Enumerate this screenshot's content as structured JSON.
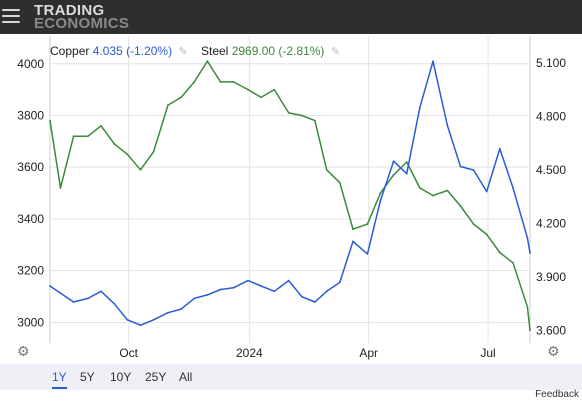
{
  "header": {
    "logo_line1": "TRADING",
    "logo_line2": "ECONOMICS"
  },
  "legend": {
    "copper": {
      "name": "Copper",
      "value": "4.035 (-1.20%)",
      "color": "#2a5bd7"
    },
    "steel": {
      "name": "Steel",
      "value": "2969.00 (-2.81%)",
      "color": "#3b8a3b"
    }
  },
  "range_buttons": [
    {
      "label": "1Y",
      "active": true
    },
    {
      "label": "5Y",
      "active": false
    },
    {
      "label": "10Y",
      "active": false
    },
    {
      "label": "25Y",
      "active": false
    },
    {
      "label": "All",
      "active": false
    }
  ],
  "feedback_label": "Feedback",
  "icons": {
    "menu": "hamburger-menu-icon",
    "edit": "pencil-icon",
    "settings": "gear-icon"
  },
  "chart_data": {
    "type": "line",
    "x_tick_labels": [
      "Oct",
      "2024",
      "Apr",
      "Jul"
    ],
    "x_tick_dates": [
      "2023-10-01",
      "2024-01-01",
      "2024-04-01",
      "2024-07-01"
    ],
    "x_range": [
      "2023-08-02",
      "2024-08-02"
    ],
    "left_axis": {
      "series": "Steel",
      "ticks": [
        "4000",
        "3800",
        "3600",
        "3400",
        "3200",
        "3000"
      ],
      "range": [
        2920,
        4030
      ]
    },
    "right_axis": {
      "series": "Copper",
      "ticks": [
        "5.100",
        "4.800",
        "4.500",
        "4.200",
        "3.900",
        "3.600"
      ],
      "range": [
        3.53,
        5.14
      ]
    },
    "grid": true,
    "legend_position": "top-left",
    "series": [
      {
        "name": "Steel",
        "axis": "left",
        "color": "#3b8a3b",
        "x": [
          "2023-08-02",
          "2023-08-10",
          "2023-08-20",
          "2023-08-31",
          "2023-09-10",
          "2023-09-20",
          "2023-09-30",
          "2023-10-10",
          "2023-10-20",
          "2023-10-31",
          "2023-11-10",
          "2023-11-20",
          "2023-11-30",
          "2023-12-10",
          "2023-12-20",
          "2023-12-31",
          "2024-01-10",
          "2024-01-20",
          "2024-01-31",
          "2024-02-10",
          "2024-02-20",
          "2024-02-29",
          "2024-03-10",
          "2024-03-20",
          "2024-03-31",
          "2024-04-10",
          "2024-04-20",
          "2024-04-30",
          "2024-05-10",
          "2024-05-20",
          "2024-05-31",
          "2024-06-10",
          "2024-06-20",
          "2024-06-30",
          "2024-07-10",
          "2024-07-20",
          "2024-07-31",
          "2024-08-02"
        ],
        "values": [
          3780,
          3520,
          3720,
          3720,
          3760,
          3690,
          3650,
          3590,
          3660,
          3840,
          3870,
          3930,
          4010,
          3930,
          3930,
          3900,
          3870,
          3900,
          3810,
          3800,
          3780,
          3590,
          3540,
          3360,
          3380,
          3500,
          3570,
          3620,
          3520,
          3490,
          3510,
          3450,
          3380,
          3340,
          3270,
          3230,
          3060,
          2969
        ]
      },
      {
        "name": "Copper",
        "axis": "right",
        "color": "#2a5bd7",
        "x": [
          "2023-08-02",
          "2023-08-10",
          "2023-08-20",
          "2023-08-31",
          "2023-09-10",
          "2023-09-20",
          "2023-09-30",
          "2023-10-10",
          "2023-10-20",
          "2023-10-31",
          "2023-11-10",
          "2023-11-20",
          "2023-11-30",
          "2023-12-10",
          "2023-12-20",
          "2023-12-31",
          "2024-01-10",
          "2024-01-20",
          "2024-01-31",
          "2024-02-10",
          "2024-02-20",
          "2024-02-29",
          "2024-03-10",
          "2024-03-20",
          "2024-03-31",
          "2024-04-10",
          "2024-04-20",
          "2024-04-30",
          "2024-05-10",
          "2024-05-20",
          "2024-05-31",
          "2024-06-10",
          "2024-06-20",
          "2024-06-30",
          "2024-07-10",
          "2024-07-20",
          "2024-07-31",
          "2024-08-02"
        ],
        "values": [
          3.85,
          3.81,
          3.76,
          3.78,
          3.82,
          3.75,
          3.66,
          3.63,
          3.66,
          3.7,
          3.72,
          3.78,
          3.8,
          3.83,
          3.84,
          3.88,
          3.85,
          3.82,
          3.88,
          3.79,
          3.76,
          3.82,
          3.87,
          4.1,
          4.03,
          4.33,
          4.55,
          4.48,
          4.85,
          5.11,
          4.75,
          4.52,
          4.5,
          4.38,
          4.62,
          4.4,
          4.12,
          4.035
        ]
      }
    ]
  }
}
